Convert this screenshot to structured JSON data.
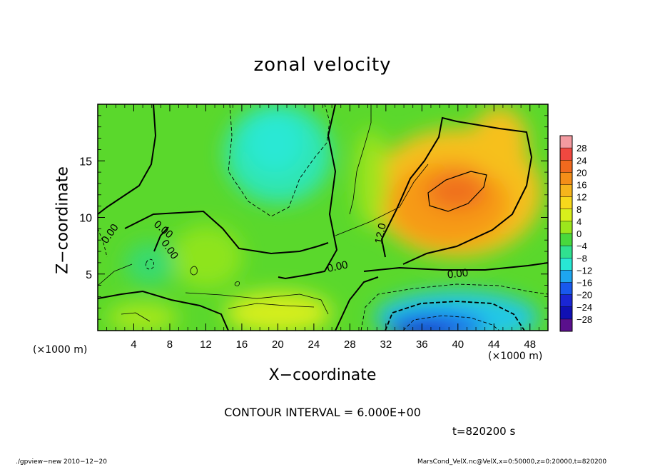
{
  "chart_data": {
    "type": "heatmap",
    "title": "zonal velocity",
    "xlabel": "X−coordinate",
    "ylabel": "Z−coordinate",
    "x_unit_left": "(×1000 m)",
    "x_unit_right": "(×1000 m)",
    "x_ticks": [
      "4",
      "8",
      "12",
      "16",
      "20",
      "24",
      "28",
      "32",
      "36",
      "40",
      "44",
      "48"
    ],
    "y_ticks": [
      "5",
      "10",
      "15"
    ],
    "xlim": [
      0,
      50
    ],
    "ylim": [
      0,
      20
    ],
    "colorbar_levels": [
      "28",
      "24",
      "20",
      "16",
      "12",
      "8",
      "4",
      "0",
      "−4",
      "−8",
      "−12",
      "−16",
      "−20",
      "−24",
      "−28"
    ],
    "colorbar_colors": [
      "#f39aa0",
      "#f04840",
      "#f06a1e",
      "#f48e18",
      "#f6b41c",
      "#f7d81c",
      "#d8ef1c",
      "#9ce61c",
      "#48d83c",
      "#30e090",
      "#28e8d4",
      "#1ea6f0",
      "#1858ee",
      "#1a26d4",
      "#1010b4",
      "#5a108c"
    ],
    "contour_labels": [
      "0.00",
      "0.00",
      "0.00",
      "0.00",
      "12.0",
      "0.00"
    ],
    "contour_interval_text": "CONTOUR INTERVAL = 6.000E+00",
    "time_text": "t=820200 s",
    "features": [
      {
        "kind": "max",
        "x": 40,
        "z": 12,
        "value": 20
      },
      {
        "kind": "min",
        "x": 38,
        "z": 0.5,
        "value": -24
      },
      {
        "kind": "min",
        "x": 20,
        "z": 16,
        "value": -8
      },
      {
        "kind": "max",
        "x": 22,
        "z": 1.5,
        "value": 8
      }
    ]
  },
  "footer": {
    "left": "./gpview−new  2010−12−20",
    "right": "MarsCond_VelX.nc@VelX,x=0:50000,z=0:20000,t=820200"
  }
}
